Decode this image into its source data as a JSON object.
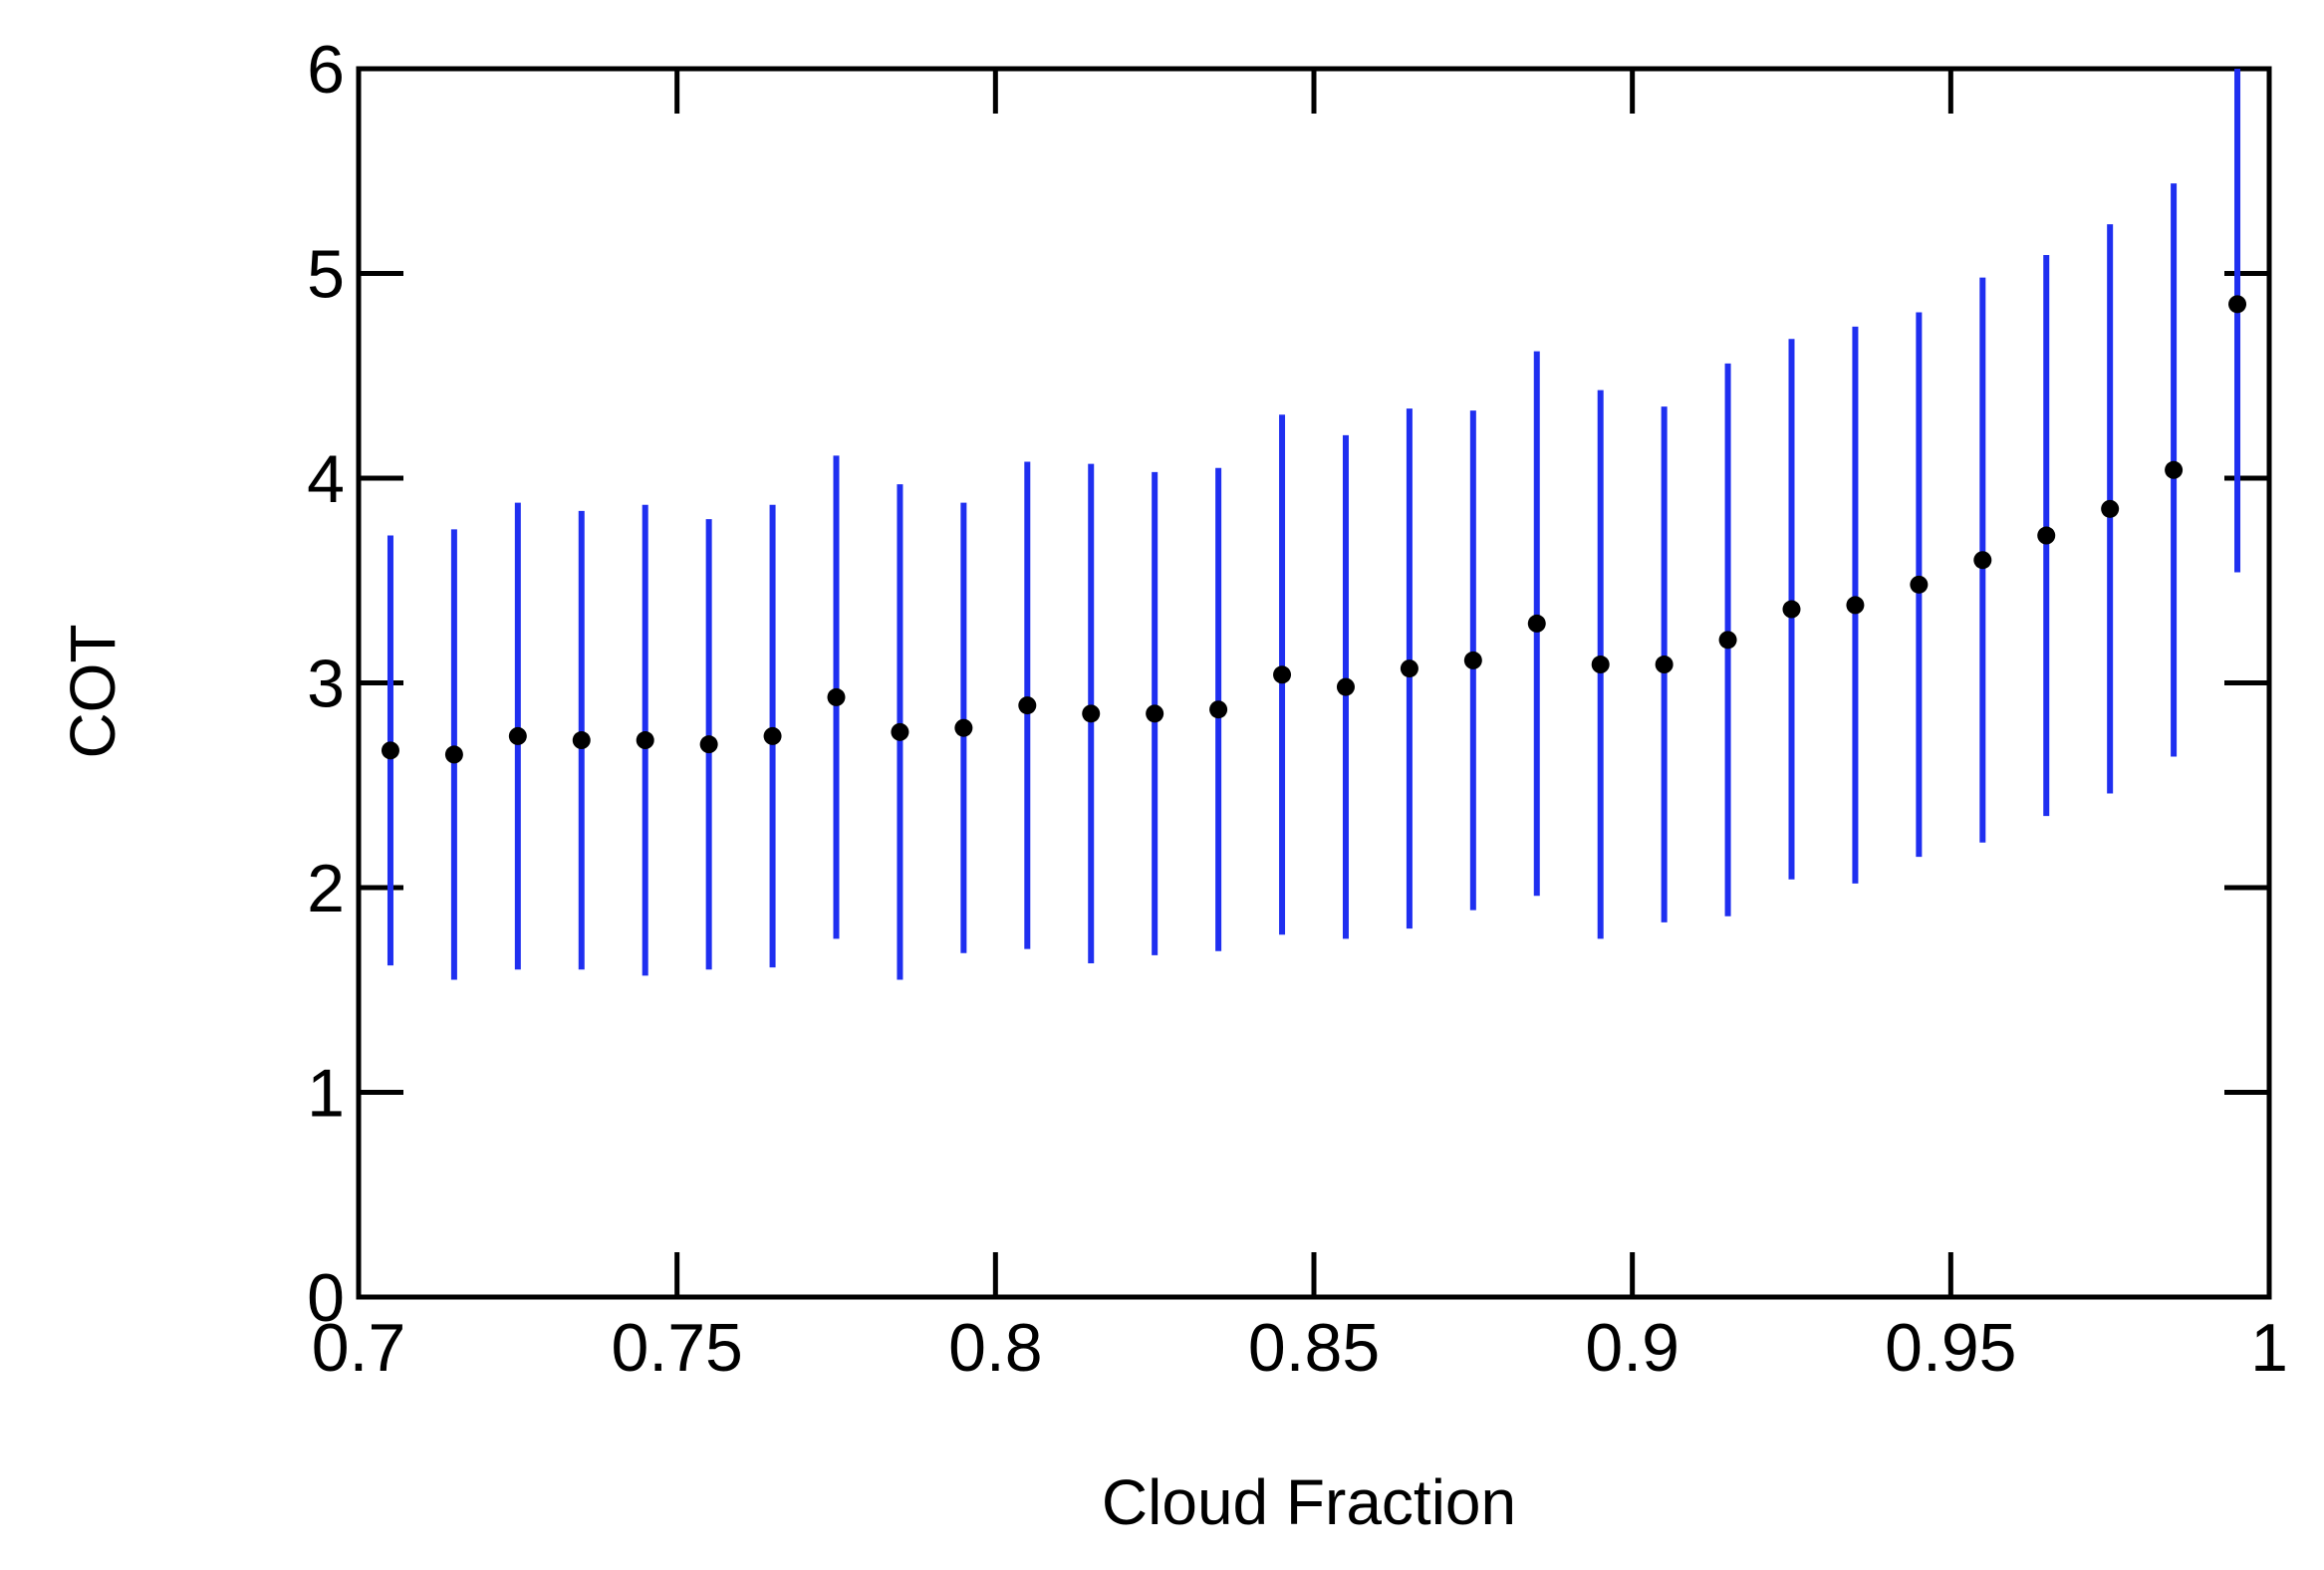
{
  "chart_data": {
    "type": "scatter",
    "x_label": "Cloud Fraction",
    "y_label": "COT",
    "x": [
      0.705,
      0.715,
      0.725,
      0.735,
      0.745,
      0.755,
      0.765,
      0.775,
      0.785,
      0.795,
      0.805,
      0.815,
      0.825,
      0.835,
      0.845,
      0.855,
      0.865,
      0.875,
      0.885,
      0.895,
      0.905,
      0.915,
      0.925,
      0.935,
      0.945,
      0.955,
      0.965,
      0.975,
      0.985,
      0.995
    ],
    "values": [
      2.67,
      2.65,
      2.74,
      2.72,
      2.72,
      2.7,
      2.74,
      2.93,
      2.76,
      2.78,
      2.89,
      2.85,
      2.85,
      2.87,
      3.04,
      2.98,
      3.07,
      3.11,
      3.29,
      3.09,
      3.09,
      3.21,
      3.36,
      3.38,
      3.48,
      3.6,
      3.72,
      3.85,
      4.04,
      4.85
    ],
    "errors": [
      1.05,
      1.1,
      1.14,
      1.12,
      1.15,
      1.1,
      1.13,
      1.18,
      1.21,
      1.1,
      1.19,
      1.22,
      1.18,
      1.18,
      1.27,
      1.23,
      1.27,
      1.22,
      1.33,
      1.34,
      1.26,
      1.35,
      1.32,
      1.36,
      1.33,
      1.38,
      1.37,
      1.39,
      1.4,
      1.31
    ],
    "color": "#000000",
    "error_color": "#1f2ff0",
    "xlim": [
      0.7,
      1
    ],
    "xticks": [
      0.7,
      0.75,
      0.8,
      0.85,
      0.9,
      0.95,
      1
    ],
    "ylim": [
      0,
      6
    ],
    "yticks": [
      0,
      1,
      2,
      3,
      4,
      5,
      6
    ]
  }
}
